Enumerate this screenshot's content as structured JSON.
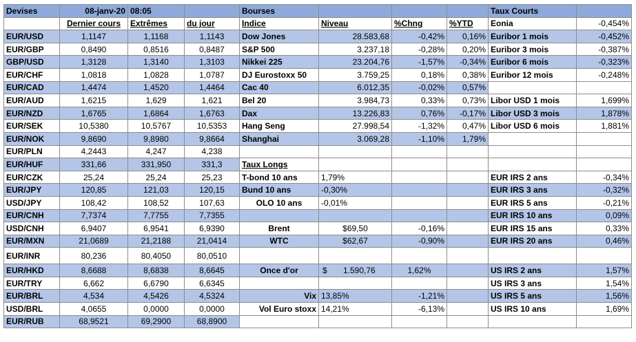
{
  "header": {
    "devises": "Devises",
    "date": "08-janv-20",
    "time": "08:05",
    "bourses": "Bourses",
    "taux_courts": "Taux Courts",
    "eonia_label": "Eonia",
    "eonia_value": "-0,454%"
  },
  "columns": {
    "dernier": "Dernier cours",
    "extremes": "Extrêmes",
    "du_jour": "du jour",
    "indice": "Indice",
    "niveau": "Niveau",
    "chng": "%Chng",
    "ytd": "%YTD",
    "taux_longs": "Taux Longs"
  },
  "fx": [
    {
      "pair": "EUR/USD",
      "last": "1,1147",
      "high": "1,1168",
      "low": "1,1143"
    },
    {
      "pair": "EUR/GBP",
      "last": "0,8490",
      "high": "0,8516",
      "low": "0,8487"
    },
    {
      "pair": "GBP/USD",
      "last": "1,3128",
      "high": "1,3140",
      "low": "1,3103"
    },
    {
      "pair": "EUR/CHF",
      "last": "1,0818",
      "high": "1,0828",
      "low": "1,0787"
    },
    {
      "pair": "EUR/CAD",
      "last": "1,4474",
      "high": "1,4520",
      "low": "1,4464"
    },
    {
      "pair": "EUR/AUD",
      "last": "1,6215",
      "high": "1,629",
      "low": "1,621"
    },
    {
      "pair": "EUR/NZD",
      "last": "1,6765",
      "high": "1,6864",
      "low": "1,6763"
    },
    {
      "pair": "EUR/SEK",
      "last": "10,5380",
      "high": "10,5767",
      "low": "10,5353"
    },
    {
      "pair": "EUR/NOK",
      "last": "9,8690",
      "high": "9,8980",
      "low": "9,8664"
    },
    {
      "pair": "EUR/PLN",
      "last": "4,2443",
      "high": "4,247",
      "low": "4,238"
    },
    {
      "pair": "EUR/HUF",
      "last": "331,66",
      "high": "331,950",
      "low": "331,3"
    },
    {
      "pair": "EUR/CZK",
      "last": "25,24",
      "high": "25,24",
      "low": "25,23"
    },
    {
      "pair": "EUR/JPY",
      "last": "120,85",
      "high": "121,03",
      "low": "120,15"
    },
    {
      "pair": "USD/JPY",
      "last": "108,42",
      "high": "108,52",
      "low": "107,63"
    },
    {
      "pair": "EUR/CNH",
      "last": "7,7374",
      "high": "7,7755",
      "low": "7,7355"
    },
    {
      "pair": "USD/CNH",
      "last": "6,9407",
      "high": "6,9541",
      "low": "6,9390"
    },
    {
      "pair": "EUR/MXN",
      "last": "21,0689",
      "high": "21,2188",
      "low": "21,0414"
    },
    {
      "pair": "EUR/INR",
      "last": "80,236",
      "high": "80,4050",
      "low": "80,0510"
    },
    {
      "pair": "EUR/HKD",
      "last": "8,6688",
      "high": "8,6838",
      "low": "8,6645"
    },
    {
      "pair": "EUR/TRY",
      "last": "6,662",
      "high": "6,6790",
      "low": "6,6345"
    },
    {
      "pair": "EUR/BRL",
      "last": "4,534",
      "high": "4,5426",
      "low": "4,5324"
    },
    {
      "pair": "USD/BRL",
      "last": "4,0655",
      "high": "0,0000",
      "low": "0,0000"
    },
    {
      "pair": "EUR/RUB",
      "last": "68,9521",
      "high": "69,2900",
      "low": "68,8900"
    }
  ],
  "indices": [
    {
      "name": "Dow Jones",
      "level": "28.583,68",
      "chng": "-0,42%",
      "ytd": "0,16%"
    },
    {
      "name": "S&P 500",
      "level": "3.237,18",
      "chng": "-0,28%",
      "ytd": "0,20%"
    },
    {
      "name": "Nikkei 225",
      "level": "23.204,76",
      "chng": "-1,57%",
      "ytd": "-0,34%"
    },
    {
      "name": "DJ Eurostoxx 50",
      "level": "3.759,25",
      "chng": "0,18%",
      "ytd": "0,38%"
    },
    {
      "name": "Cac 40",
      "level": "6.012,35",
      "chng": "-0,02%",
      "ytd": "0,57%"
    },
    {
      "name": "Bel 20",
      "level": "3.984,73",
      "chng": "0,33%",
      "ytd": "0,73%"
    },
    {
      "name": "Dax",
      "level": "13.226,83",
      "chng": "0,76%",
      "ytd": "-0,17%"
    },
    {
      "name": "Hang Seng",
      "level": "27.998,54",
      "chng": "-1,32%",
      "ytd": "0,47%"
    },
    {
      "name": "Shanghai",
      "level": "3.069,28",
      "chng": "-1,10%",
      "ytd": "1,79%"
    }
  ],
  "long_rates": [
    {
      "name": "T-bond 10 ans",
      "value": "1,79%"
    },
    {
      "name": "Bund 10 ans",
      "value": "-0,30%"
    },
    {
      "name": "OLO 10 ans",
      "value": "-0,01%"
    }
  ],
  "commodities": [
    {
      "name": "Brent",
      "value": "$69,50",
      "chng": "-0,16%"
    },
    {
      "name": "WTC",
      "value": "$62,67",
      "chng": "-0,90%"
    }
  ],
  "gold": {
    "name": "Once d'or",
    "currency": "$",
    "value": "1.590,76",
    "chng": "1,62%"
  },
  "vol": [
    {
      "name": "Vix",
      "value": "13,85%",
      "chng": "-1,21%"
    },
    {
      "name": "Vol Euro stoxx",
      "value": "14,21%",
      "chng": "-6,13%"
    }
  ],
  "short_rates": [
    {
      "name": "Euribor 1 mois",
      "value": "-0,452%"
    },
    {
      "name": "Euribor 3 mois",
      "value": "-0,387%"
    },
    {
      "name": "Euribor 6 mois",
      "value": "-0,323%"
    },
    {
      "name": "Euribor 12 mois",
      "value": "-0,248%"
    }
  ],
  "libor": [
    {
      "name": "Libor USD 1 mois",
      "value": "1,699%"
    },
    {
      "name": "Libor USD 3 mois",
      "value": "1,878%"
    },
    {
      "name": "Libor USD 6 mois",
      "value": "1,881%"
    }
  ],
  "eur_irs": [
    {
      "name": "EUR IRS 2 ans",
      "value": "-0,34%"
    },
    {
      "name": "EUR IRS 3 ans",
      "value": "-0,32%"
    },
    {
      "name": "EUR IRS 5 ans",
      "value": "-0,21%"
    },
    {
      "name": "EUR IRS 10 ans",
      "value": "0,09%"
    },
    {
      "name": "EUR IRS 15 ans",
      "value": "0,33%"
    },
    {
      "name": "EUR IRS 20 ans",
      "value": "0,46%"
    }
  ],
  "us_irs": [
    {
      "name": "US IRS 2 ans",
      "value": "1,57%"
    },
    {
      "name": "US IRS 3 ans",
      "value": "1,54%"
    },
    {
      "name": "US IRS 5 ans",
      "value": "1,56%"
    },
    {
      "name": "US IRS 10 ans",
      "value": "1,69%"
    }
  ],
  "colors": {
    "header": "#8eaadb",
    "band": "#b4c6e7",
    "border": "#8c8c8c"
  }
}
